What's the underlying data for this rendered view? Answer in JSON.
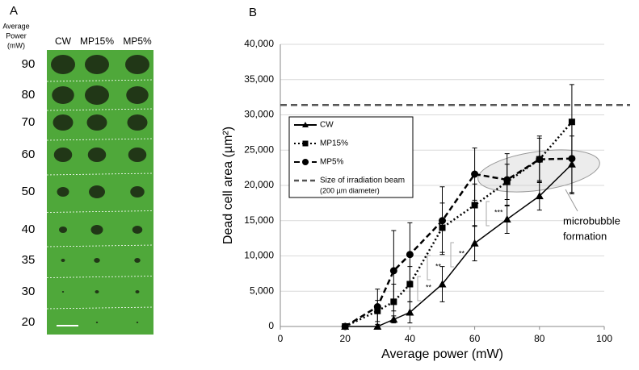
{
  "panel_a": {
    "letter": "A",
    "axis_label": [
      "Average",
      "Power",
      "(mW)"
    ],
    "columns": [
      "CW",
      "MP15%",
      "MP5%"
    ],
    "rows": [
      "90",
      "80",
      "70",
      "60",
      "50",
      "40",
      "35",
      "30",
      "20"
    ]
  },
  "chart_data": {
    "type": "line",
    "letter": "B",
    "xlabel": "Average power (mW)",
    "ylabel": "Dead cell area (µm²)",
    "x": [
      20,
      30,
      35,
      40,
      50,
      60,
      70,
      80,
      90
    ],
    "xlim": [
      0,
      100
    ],
    "xticks": [
      0,
      20,
      40,
      60,
      80,
      100
    ],
    "ylim": [
      0,
      40000
    ],
    "yticks": [
      0,
      {
        "value": 5000,
        "label": "5,000"
      },
      {
        "value": 10000,
        "label": "10,000"
      },
      {
        "value": 15000,
        "label": "15,000"
      },
      {
        "value": 20000,
        "label": "20,000"
      },
      {
        "value": 25000,
        "label": "25,000"
      },
      {
        "value": 30000,
        "label": "30,000"
      },
      {
        "value": 35000,
        "label": "35,000"
      },
      {
        "value": 40000,
        "label": "40,000"
      }
    ],
    "grid": true,
    "series": [
      {
        "name": "CW",
        "color": "#000000",
        "marker": "triangle",
        "line_style": "solid",
        "values": [
          0,
          0,
          1000,
          2000,
          6000,
          11800,
          15200,
          18500,
          23000
        ],
        "errors": [
          0,
          0,
          500,
          1500,
          2500,
          2500,
          2000,
          2000,
          4000
        ]
      },
      {
        "name": "MP15%",
        "color": "#000000",
        "marker": "square",
        "line_style": "dotted",
        "values": [
          0,
          2200,
          3500,
          6000,
          14000,
          17200,
          20500,
          23700,
          29000
        ],
        "errors": [
          0,
          1500,
          2500,
          2500,
          3500,
          3000,
          2500,
          3000,
          5300
        ]
      },
      {
        "name": "MP5%",
        "color": "#000000",
        "marker": "circle",
        "line_style": "dashed",
        "values": [
          0,
          2800,
          7900,
          10200,
          15000,
          21600,
          20800,
          23700,
          23800
        ],
        "errors": [
          0,
          2500,
          5700,
          4500,
          4800,
          3700,
          3700,
          3300,
          5000
        ]
      }
    ],
    "reference_line": {
      "name": "Size of irradiation beam",
      "note": "(200 µm diameter)",
      "value": 31400,
      "color": "#555555"
    },
    "annotation": [
      "microbubble",
      "formation"
    ],
    "significance": [
      "**",
      "**",
      "**",
      "***"
    ]
  }
}
